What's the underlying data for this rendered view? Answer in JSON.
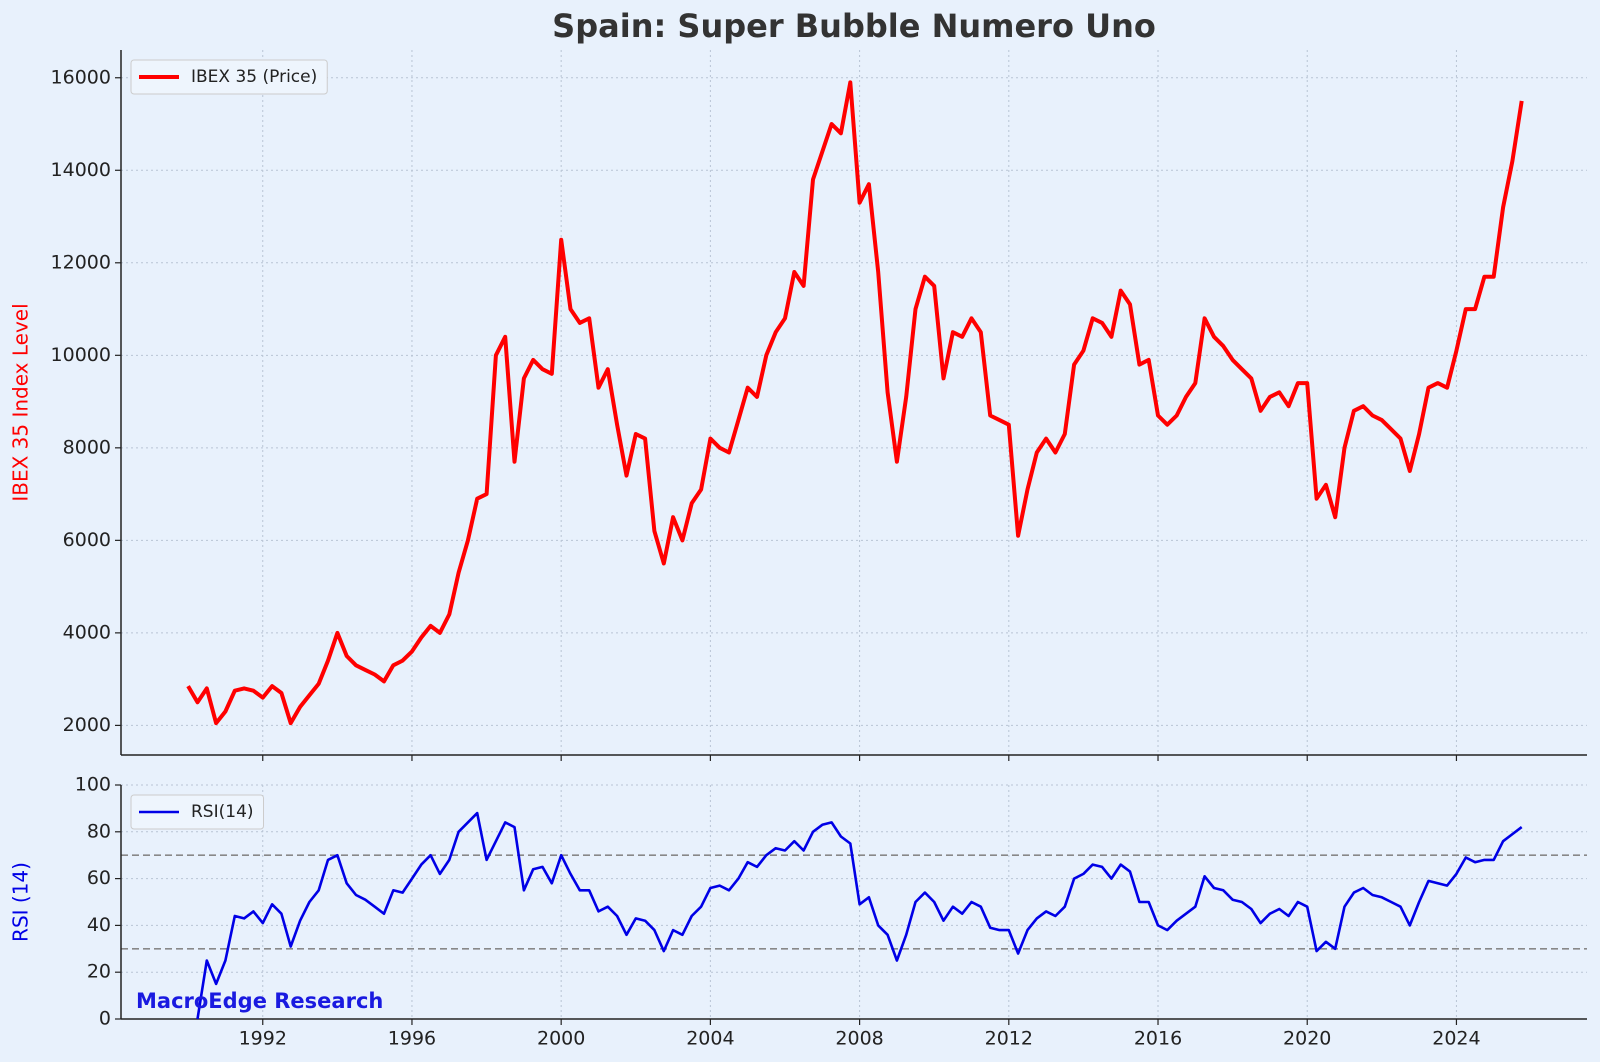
{
  "chart_data": [
    {
      "type": "line",
      "title": "Spain: Super Bubble Numero Uno",
      "ylabel": "IBEX 35 Index Level",
      "xlim": [
        1988.2,
        2027.5
      ],
      "ylim": [
        1360,
        16600
      ],
      "yticks": [
        2000,
        4000,
        6000,
        8000,
        10000,
        12000,
        14000,
        16000
      ],
      "grid": true,
      "legend": "upper left",
      "series": [
        {
          "name": "IBEX 35 (Price)",
          "color": "#ff0000",
          "x": [
            1990,
            1990.25,
            1990.5,
            1990.75,
            1991,
            1991.25,
            1991.5,
            1991.75,
            1992,
            1992.25,
            1992.5,
            1992.75,
            1993,
            1993.25,
            1993.5,
            1993.75,
            1994,
            1994.25,
            1994.5,
            1994.75,
            1995,
            1995.25,
            1995.5,
            1995.75,
            1996,
            1996.25,
            1996.5,
            1996.75,
            1997,
            1997.25,
            1997.5,
            1997.75,
            1998,
            1998.25,
            1998.5,
            1998.75,
            1999,
            1999.25,
            1999.5,
            1999.75,
            2000,
            2000.25,
            2000.5,
            2000.75,
            2001,
            2001.25,
            2001.5,
            2001.75,
            2002,
            2002.25,
            2002.5,
            2002.75,
            2003,
            2003.25,
            2003.5,
            2003.75,
            2004,
            2004.25,
            2004.5,
            2004.75,
            2005,
            2005.25,
            2005.5,
            2005.75,
            2006,
            2006.25,
            2006.5,
            2006.75,
            2007,
            2007.25,
            2007.5,
            2007.75,
            2008,
            2008.25,
            2008.5,
            2008.75,
            2009,
            2009.25,
            2009.5,
            2009.75,
            2010,
            2010.25,
            2010.5,
            2010.75,
            2011,
            2011.25,
            2011.5,
            2011.75,
            2012,
            2012.25,
            2012.5,
            2012.75,
            2013,
            2013.25,
            2013.5,
            2013.75,
            2014,
            2014.25,
            2014.5,
            2014.75,
            2015,
            2015.25,
            2015.5,
            2015.75,
            2016,
            2016.25,
            2016.5,
            2016.75,
            2017,
            2017.25,
            2017.5,
            2017.75,
            2018,
            2018.25,
            2018.5,
            2018.75,
            2019,
            2019.25,
            2019.5,
            2019.75,
            2020,
            2020.25,
            2020.5,
            2020.75,
            2021,
            2021.25,
            2021.5,
            2021.75,
            2022,
            2022.25,
            2022.5,
            2022.75,
            2023,
            2023.25,
            2023.5,
            2023.75,
            2024,
            2024.25,
            2024.5,
            2024.75,
            2025,
            2025.25,
            2025.5,
            2025.75
          ],
          "values": [
            2850,
            2500,
            2800,
            2050,
            2300,
            2750,
            2800,
            2750,
            2600,
            2850,
            2700,
            2050,
            2400,
            2650,
            2900,
            3400,
            4000,
            3500,
            3300,
            3200,
            3100,
            2950,
            3300,
            3400,
            3600,
            3900,
            4150,
            4000,
            4400,
            5300,
            6000,
            6900,
            7000,
            10000,
            10400,
            7700,
            9500,
            9900,
            9700,
            9600,
            12500,
            11000,
            10700,
            10800,
            9300,
            9700,
            8500,
            7400,
            8300,
            8200,
            6200,
            5500,
            6500,
            6000,
            6800,
            7100,
            8200,
            8000,
            7900,
            8600,
            9300,
            9100,
            10000,
            10500,
            10800,
            11800,
            11500,
            13800,
            14400,
            15000,
            14800,
            15900,
            13300,
            13700,
            11800,
            9200,
            7700,
            9100,
            11000,
            11700,
            11500,
            9500,
            10500,
            10400,
            10800,
            10500,
            8700,
            8600,
            8500,
            6100,
            7100,
            7900,
            8200,
            7900,
            8300,
            9800,
            10100,
            10800,
            10700,
            10400,
            11400,
            11100,
            9800,
            9900,
            8700,
            8500,
            8700,
            9100,
            9400,
            10800,
            10400,
            10200,
            9900,
            9700,
            9500,
            8800,
            9100,
            9200,
            8900,
            9400,
            9400,
            6900,
            7200,
            6500,
            8000,
            8800,
            8900,
            8700,
            8600,
            8400,
            8200,
            7500,
            8300,
            9300,
            9400,
            9300,
            10100,
            11000,
            11000,
            11700,
            11700,
            13200,
            14200,
            15500
          ]
        }
      ]
    },
    {
      "type": "line",
      "ylabel": "RSI (14)",
      "annotation": "MacroEdge Research",
      "xlim": [
        1988.2,
        2027.5
      ],
      "ylim": [
        0,
        100
      ],
      "xticks": [
        1992,
        1996,
        2000,
        2004,
        2008,
        2012,
        2016,
        2020,
        2024
      ],
      "yticks": [
        0,
        20,
        40,
        60,
        80,
        100
      ],
      "hlines": [
        70,
        30
      ],
      "grid": true,
      "legend": "upper left",
      "series": [
        {
          "name": "RSI(14)",
          "color": "#0000e6",
          "x": [
            1990.25,
            1990.5,
            1990.75,
            1991,
            1991.25,
            1991.5,
            1991.75,
            1992,
            1992.25,
            1992.5,
            1992.75,
            1993,
            1993.25,
            1993.5,
            1993.75,
            1994,
            1994.25,
            1994.5,
            1994.75,
            1995,
            1995.25,
            1995.5,
            1995.75,
            1996,
            1996.25,
            1996.5,
            1996.75,
            1997,
            1997.25,
            1997.5,
            1997.75,
            1998,
            1998.25,
            1998.5,
            1998.75,
            1999,
            1999.25,
            1999.5,
            1999.75,
            2000,
            2000.25,
            2000.5,
            2000.75,
            2001,
            2001.25,
            2001.5,
            2001.75,
            2002,
            2002.25,
            2002.5,
            2002.75,
            2003,
            2003.25,
            2003.5,
            2003.75,
            2004,
            2004.25,
            2004.5,
            2004.75,
            2005,
            2005.25,
            2005.5,
            2005.75,
            2006,
            2006.25,
            2006.5,
            2006.75,
            2007,
            2007.25,
            2007.5,
            2007.75,
            2008,
            2008.25,
            2008.5,
            2008.75,
            2009,
            2009.25,
            2009.5,
            2009.75,
            2010,
            2010.25,
            2010.5,
            2010.75,
            2011,
            2011.25,
            2011.5,
            2011.75,
            2012,
            2012.25,
            2012.5,
            2012.75,
            2013,
            2013.25,
            2013.5,
            2013.75,
            2014,
            2014.25,
            2014.5,
            2014.75,
            2015,
            2015.25,
            2015.5,
            2015.75,
            2016,
            2016.25,
            2016.5,
            2016.75,
            2017,
            2017.25,
            2017.5,
            2017.75,
            2018,
            2018.25,
            2018.5,
            2018.75,
            2019,
            2019.25,
            2019.5,
            2019.75,
            2020,
            2020.25,
            2020.5,
            2020.75,
            2021,
            2021.25,
            2021.5,
            2021.75,
            2022,
            2022.25,
            2022.5,
            2022.75,
            2023,
            2023.25,
            2023.5,
            2023.75,
            2024,
            2024.25,
            2024.5,
            2024.75,
            2025,
            2025.25,
            2025.5,
            2025.75
          ],
          "values": [
            0,
            25,
            15,
            25,
            44,
            43,
            46,
            41,
            49,
            45,
            31,
            42,
            50,
            55,
            68,
            70,
            58,
            53,
            51,
            48,
            45,
            55,
            54,
            60,
            66,
            70,
            62,
            68,
            80,
            84,
            88,
            68,
            76,
            84,
            82,
            55,
            64,
            65,
            58,
            70,
            62,
            55,
            55,
            46,
            48,
            44,
            36,
            43,
            42,
            38,
            29,
            38,
            36,
            44,
            48,
            56,
            57,
            55,
            60,
            67,
            65,
            70,
            73,
            72,
            76,
            72,
            80,
            83,
            84,
            78,
            75,
            49,
            52,
            40,
            36,
            25,
            36,
            50,
            54,
            50,
            42,
            48,
            45,
            50,
            48,
            39,
            38,
            38,
            28,
            38,
            43,
            46,
            44,
            48,
            60,
            62,
            66,
            65,
            60,
            66,
            63,
            50,
            50,
            40,
            38,
            42,
            45,
            48,
            61,
            56,
            55,
            51,
            50,
            47,
            41,
            45,
            47,
            44,
            50,
            48,
            29,
            33,
            30,
            48,
            54,
            56,
            53,
            52,
            50,
            48,
            40,
            50,
            59,
            58,
            57,
            62,
            69,
            67,
            68,
            68,
            76,
            79,
            82
          ]
        }
      ]
    }
  ]
}
